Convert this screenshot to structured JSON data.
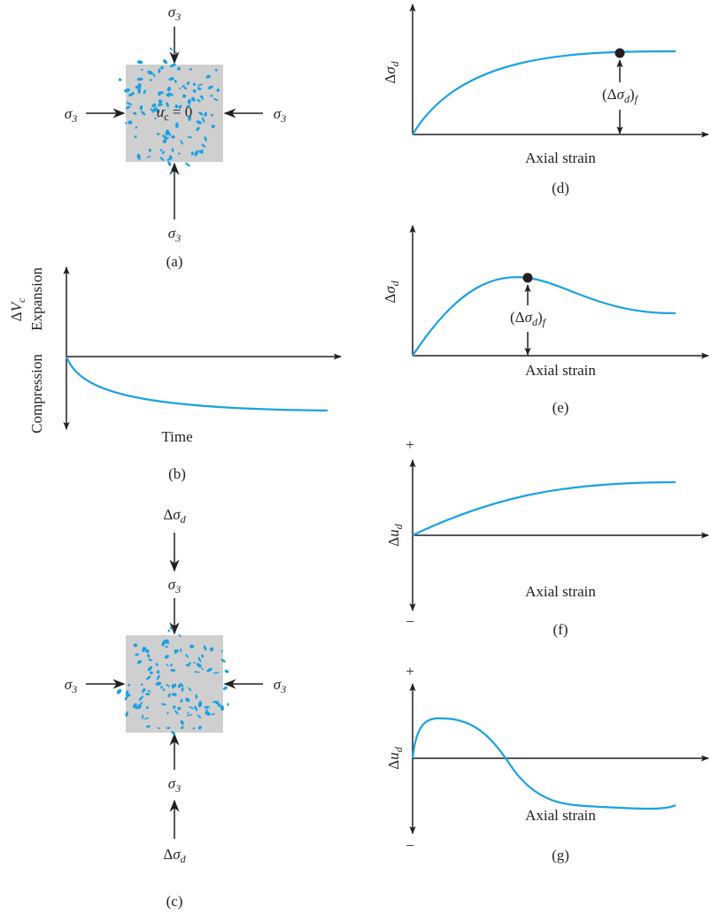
{
  "panel_a": {
    "top": {
      "sym": "σ",
      "sub": "3"
    },
    "left": {
      "sym": "σ",
      "sub": "3"
    },
    "right": {
      "sym": "σ",
      "sub": "3"
    },
    "bottom": {
      "sym": "σ",
      "sub": "3"
    },
    "pore": {
      "sym": "u",
      "sub": "c",
      "post": " = 0"
    },
    "caption": "(a)"
  },
  "panel_b": {
    "y_label": {
      "pre": "Δ",
      "sym": "V",
      "sub": "c"
    },
    "up": "Expansion",
    "down": "Compression",
    "x_label": "Time",
    "caption": "(b)"
  },
  "panel_c": {
    "top_outer": {
      "pre": "Δ",
      "sym": "σ",
      "sub": "d"
    },
    "top_inner": {
      "sym": "σ",
      "sub": "3"
    },
    "left": {
      "sym": "σ",
      "sub": "3"
    },
    "right": {
      "sym": "σ",
      "sub": "3"
    },
    "bottom_inner": {
      "sym": "σ",
      "sub": "3"
    },
    "bottom_outer": {
      "pre": "Δ",
      "sym": "σ",
      "sub": "d"
    },
    "caption": "(c)"
  },
  "panel_d": {
    "y_label": {
      "pre": "Δ",
      "sym": "σ",
      "sub": "d"
    },
    "failure": {
      "pre": "(Δ",
      "sym": "σ",
      "sub": "d",
      "post": ")",
      "sub2": "f"
    },
    "x_label": "Axial strain",
    "caption": "(d)"
  },
  "panel_e": {
    "y_label": {
      "pre": "Δ",
      "sym": "σ",
      "sub": "d"
    },
    "failure": {
      "pre": "(Δ",
      "sym": "σ",
      "sub": "d",
      "post": ")",
      "sub2": "f"
    },
    "x_label": "Axial strain",
    "caption": "(e)"
  },
  "panel_f": {
    "plus": "+",
    "minus": "−",
    "y_label": {
      "pre": "Δ",
      "sym": "u",
      "sub": "d"
    },
    "x_label": "Axial strain",
    "caption": "(f)"
  },
  "panel_g": {
    "plus": "+",
    "minus": "−",
    "y_label": {
      "pre": "Δ",
      "sym": "u",
      "sub": "d"
    },
    "x_label": "Axial strain",
    "caption": "(g)"
  }
}
